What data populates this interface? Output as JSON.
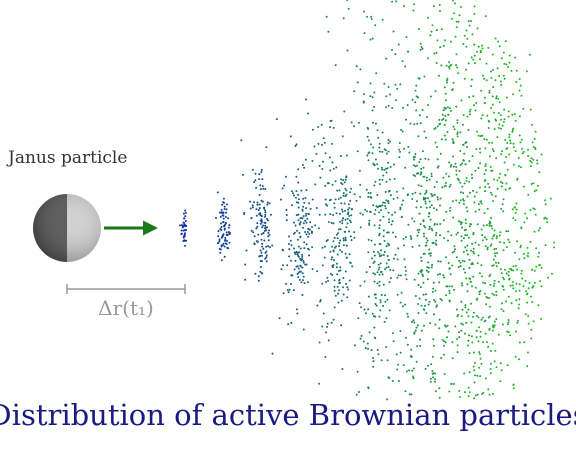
{
  "particle_label": "Janus particle",
  "displacement_label": "Δr(t₁)",
  "caption": "Distribution of active Brownian particles"
}
